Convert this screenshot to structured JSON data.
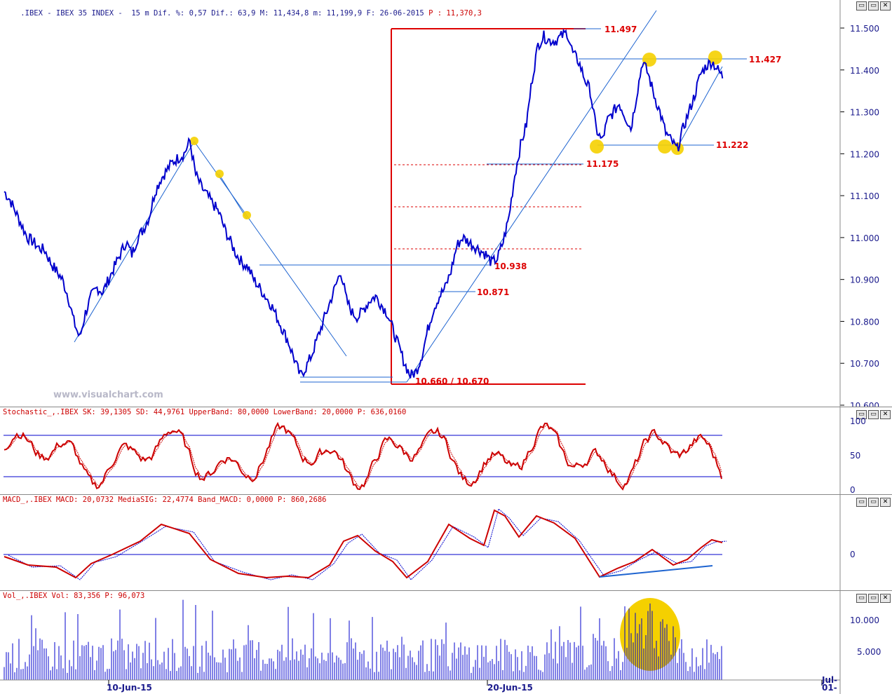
{
  "header": {
    "symbol": ".IBEX - IBEX 35 INDEX -",
    "interval": "15 m",
    "dif_pct_label": "Dif. %:",
    "dif_pct": "0,57",
    "dif_label": "Dif.:",
    "dif": "63,9",
    "max_label": "M:",
    "max": "11,434,8",
    "min_label": "m:",
    "min": "11,199,9",
    "date_label": "F:",
    "date": "26-06-2015",
    "price_label": "P :",
    "price": "11,370,3"
  },
  "window_buttons": [
    "▭",
    "▭",
    "✕"
  ],
  "watermark": "www.visualchart.com",
  "price_labels": {
    "high": "11.497",
    "resistance": "11.427",
    "support": "11.222",
    "gap_low": "11.175",
    "breakout": "10.938",
    "pullback": "10.871",
    "low": "10.660 / 10.670"
  },
  "stochastic": {
    "label": "Stochastic_,.IBEX SK: 39,1305 SD: 44,9761 UpperBand: 80,0000 LowerBand: 20,0000 P: 636,0160",
    "axis": [
      "100",
      "50",
      "0"
    ]
  },
  "macd": {
    "label": "MACD_,.IBEX MACD: 20,0732 MediaSIG: 22,4774 Band_MACD: 0,0000 P: 860,2686",
    "axis": [
      "0"
    ]
  },
  "volume": {
    "label_prefix": "Vol_,.IBEX Vol: 83,356",
    "label_suffix": "P: 96,073",
    "axis": [
      "10.000",
      "5.000"
    ]
  },
  "x_axis": {
    "labels": [
      "10-Jun-15",
      "20-Jun-15",
      "Jul-",
      "01-"
    ]
  },
  "colors": {
    "price_line": "#0000cc",
    "annotation_red": "#dd0000",
    "trendline": "#1e64d0",
    "highlight": "#f5d000",
    "indicator_red": "#cc0000"
  },
  "chart_data": {
    "type": "line",
    "title": "IBEX 35 INDEX 15 m",
    "y_axis": {
      "ticks": [
        "11.500",
        "11.400",
        "11.300",
        "11.200",
        "11.100",
        "11.000",
        "10.900",
        "10.800",
        "10.700",
        "10.600"
      ],
      "ylim": [
        10600,
        11550
      ]
    },
    "x_ticks": [
      "10-Jun-15",
      "20-Jun-15",
      "Jul-",
      "01-"
    ],
    "series": [
      {
        "values": [
          11110,
          11090,
          11060,
          11030,
          11000,
          10990,
          10975,
          10970,
          10940,
          10920,
          10900,
          10860,
          10800,
          10760,
          10820,
          10860,
          10880,
          10870,
          10900,
          10930,
          10960,
          10990,
          10960,
          11000,
          11020,
          11050,
          11110,
          11140,
          11160,
          11180,
          11190,
          11200,
          11230,
          11150,
          11120,
          11100,
          11080,
          11060,
          11020,
          10990,
          10960,
          10940,
          10930,
          10900,
          10880,
          10860,
          10840,
          10810,
          10780,
          10750,
          10710,
          10670,
          10690,
          10720,
          10760,
          10800,
          10840,
          10880,
          10920,
          10850,
          10820,
          10810,
          10830,
          10850,
          10860,
          10840,
          10820,
          10780,
          10740,
          10700,
          10670,
          10680,
          10720,
          10780,
          10830,
          10860,
          10880,
          10920,
          10980,
          11000,
          10990,
          10980,
          10970,
          10960,
          10940,
          10950,
          10990,
          11050,
          11150,
          11220,
          11270,
          11380,
          11460,
          11480,
          11470,
          11470,
          11480,
          11490,
          11440,
          11420,
          11380,
          11350,
          11260,
          11230,
          11280,
          11300,
          11320,
          11290,
          11260,
          11340,
          11420,
          11390,
          11340,
          11300,
          11250,
          11230,
          11210,
          11260,
          11300,
          11340,
          11390,
          11410,
          11420,
          11400,
          11380
        ]
      }
    ],
    "annotations": [
      {
        "price": 11497,
        "label": "11.497"
      },
      {
        "price": 11427,
        "label": "11.427"
      },
      {
        "price": 11222,
        "label": "11.222"
      },
      {
        "price": 11175,
        "label": "11.175"
      },
      {
        "price": 10938,
        "label": "10.938"
      },
      {
        "price": 10871,
        "label": "10.871"
      },
      {
        "price": 10660,
        "label": "10.660 / 10.670"
      }
    ]
  }
}
